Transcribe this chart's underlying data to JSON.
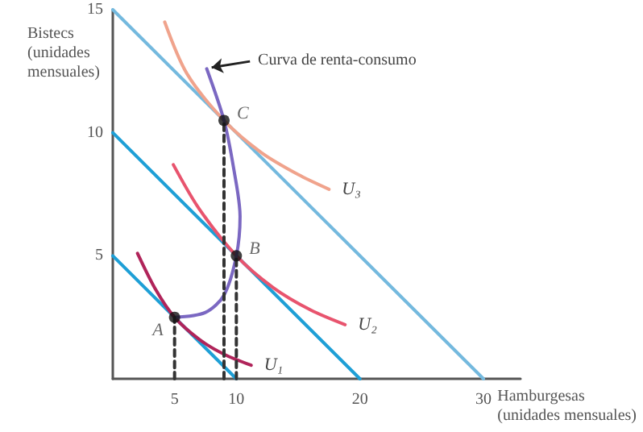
{
  "chart_data": {
    "type": "line",
    "xlabel": "Hamburgesas\n(unidades mensuales)",
    "ylabel": "Bistecs\n(unidades\nmensuales)",
    "xlim": [
      0,
      33
    ],
    "ylim": [
      0,
      15
    ],
    "xticks": [
      5,
      10,
      20,
      30
    ],
    "yticks": [
      5,
      10,
      15
    ],
    "grid": false,
    "legend": false,
    "marker": "none",
    "line_style": "solid",
    "series": [
      {
        "color": "#1e9fd6",
        "x": [
          0,
          10
        ],
        "values": [
          5,
          0
        ]
      },
      {
        "color": "#1e9fd6",
        "x": [
          0,
          20
        ],
        "values": [
          10,
          0
        ]
      },
      {
        "color": "#74b9de",
        "x": [
          0,
          30
        ],
        "values": [
          15,
          0
        ]
      },
      {
        "name": "U₁",
        "color": "#b0245a",
        "x": [
          2,
          3.5,
          5,
          7,
          9,
          11.2
        ],
        "values": [
          5.1,
          3.6,
          2.5,
          1.6,
          1.0,
          0.55
        ]
      },
      {
        "name": "U₂",
        "color": "#e8546e",
        "x": [
          4.9,
          7,
          10,
          13,
          16,
          18.8
        ],
        "values": [
          8.7,
          6.9,
          5,
          3.7,
          2.8,
          2.2
        ]
      },
      {
        "name": "U₃",
        "color": "#f0a38c",
        "x": [
          4.2,
          6,
          9,
          12,
          15,
          17.5
        ],
        "values": [
          14.5,
          12.4,
          10.5,
          9.2,
          8.3,
          7.7
        ]
      },
      {
        "name": "Curva de renta-consumo",
        "color": "#7b68c2",
        "x": [
          7.6,
          9,
          9.8,
          10.3,
          10,
          9,
          7.5,
          5
        ],
        "values": [
          12.6,
          10.5,
          8.5,
          6.6,
          5,
          3.4,
          2.7,
          2.5
        ]
      },
      {
        "color": "#333333",
        "line_style": "dashed",
        "x": [
          5,
          5
        ],
        "values": [
          0,
          2.5
        ]
      },
      {
        "color": "#333333",
        "line_style": "dashed",
        "x": [
          10,
          10
        ],
        "values": [
          0,
          5
        ]
      },
      {
        "color": "#333333",
        "line_style": "dashed",
        "x": [
          9,
          9
        ],
        "values": [
          0,
          10.5
        ]
      },
      {
        "type": "scatter",
        "marker": "circle",
        "color": "#111111",
        "x": [
          5,
          10,
          9
        ],
        "values": [
          2.5,
          5,
          10.5
        ]
      }
    ],
    "annotations": [
      {
        "text": "A",
        "x": 5,
        "y": 2.5
      },
      {
        "text": "B",
        "x": 10,
        "y": 5
      },
      {
        "text": "C",
        "x": 9,
        "y": 10.5
      }
    ]
  }
}
